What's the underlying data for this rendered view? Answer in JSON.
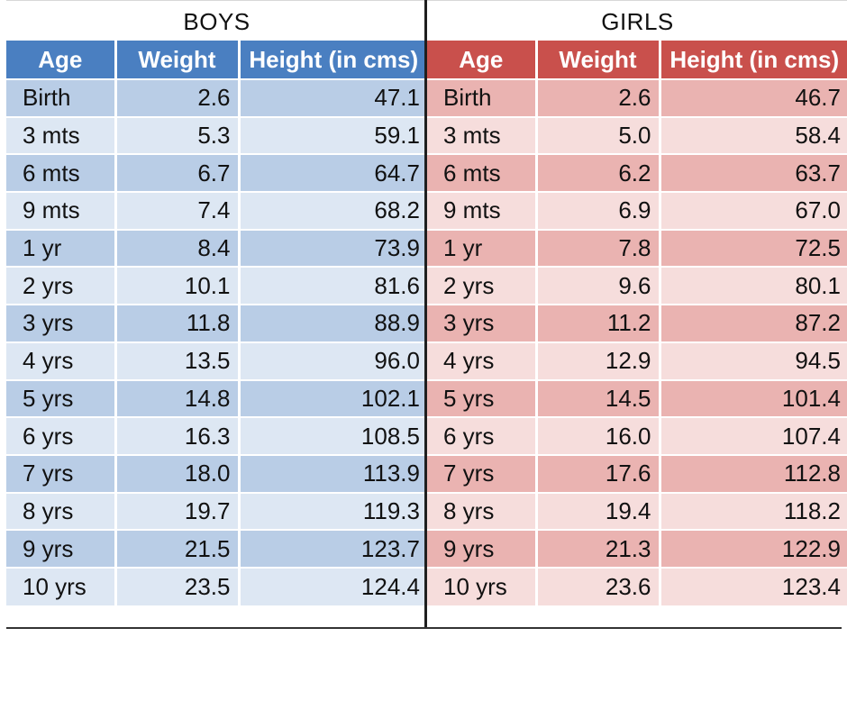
{
  "chart_data": {
    "type": "table",
    "columns": [
      "Age",
      "Weight",
      "Height (in cms)"
    ],
    "groups": [
      {
        "name": "BOYS",
        "rows": [
          [
            "Birth",
            "2.6",
            "47.1"
          ],
          [
            "3 mts",
            "5.3",
            "59.1"
          ],
          [
            "6 mts",
            "6.7",
            "64.7"
          ],
          [
            "9 mts",
            "7.4",
            "68.2"
          ],
          [
            "1 yr",
            "8.4",
            "73.9"
          ],
          [
            "2 yrs",
            "10.1",
            "81.6"
          ],
          [
            "3 yrs",
            "11.8",
            "88.9"
          ],
          [
            "4 yrs",
            "13.5",
            "96.0"
          ],
          [
            "5 yrs",
            "14.8",
            "102.1"
          ],
          [
            "6 yrs",
            "16.3",
            "108.5"
          ],
          [
            "7 yrs",
            "18.0",
            "113.9"
          ],
          [
            "8 yrs",
            "19.7",
            "119.3"
          ],
          [
            "9 yrs",
            "21.5",
            "123.7"
          ],
          [
            "10 yrs",
            "23.5",
            "124.4"
          ]
        ]
      },
      {
        "name": "GIRLS",
        "rows": [
          [
            "Birth",
            "2.6",
            "46.7"
          ],
          [
            "3 mts",
            "5.0",
            "58.4"
          ],
          [
            "6 mts",
            "6.2",
            "63.7"
          ],
          [
            "9 mts",
            "6.9",
            "67.0"
          ],
          [
            "1 yr",
            "7.8",
            "72.5"
          ],
          [
            "2 yrs",
            "9.6",
            "80.1"
          ],
          [
            "3 yrs",
            "11.2",
            "87.2"
          ],
          [
            "4 yrs",
            "12.9",
            "94.5"
          ],
          [
            "5 yrs",
            "14.5",
            "101.4"
          ],
          [
            "6 yrs",
            "16.0",
            "107.4"
          ],
          [
            "7 yrs",
            "17.6",
            "112.8"
          ],
          [
            "8 yrs",
            "19.4",
            "118.2"
          ],
          [
            "9 yrs",
            "21.3",
            "122.9"
          ],
          [
            "10 yrs",
            "23.6",
            "123.4"
          ]
        ]
      }
    ],
    "colors": {
      "boys_header": "#4a7fc1",
      "boys_band_dark": "#b9cde6",
      "boys_band_light": "#dde7f3",
      "girls_header": "#c9504c",
      "girls_band_dark": "#eab3b1",
      "girls_band_light": "#f6dddc"
    }
  }
}
